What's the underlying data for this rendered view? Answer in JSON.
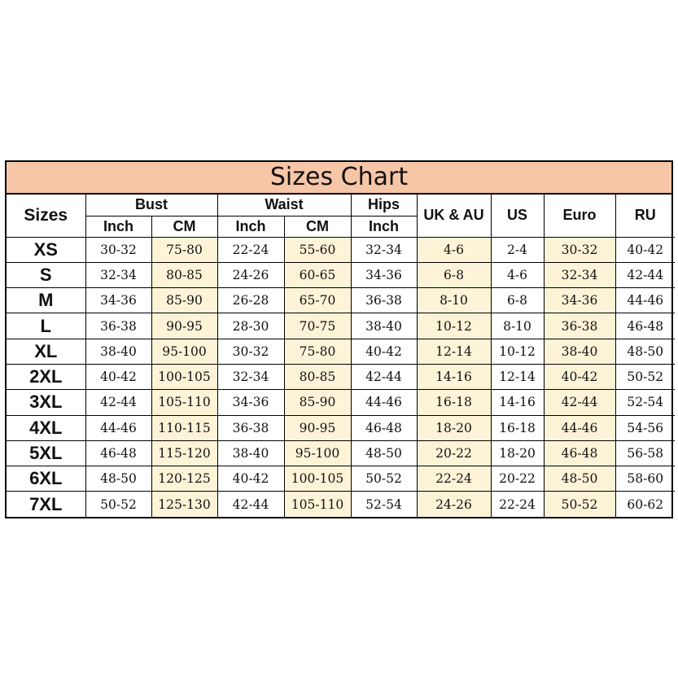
{
  "chart": {
    "title": "Sizes Chart",
    "headers": {
      "sizes": "Sizes",
      "bust": "Bust",
      "waist": "Waist",
      "hips": "Hips",
      "uk_au": "UK & AU",
      "us": "US",
      "euro": "Euro",
      "ru": "RU",
      "inch": "Inch",
      "cm": "CM"
    },
    "highlight_color": "#fdf4d8",
    "title_color": "#f7c6a7",
    "rows": [
      [
        "XS",
        "30-32",
        "75-80",
        "22-24",
        "55-60",
        "32-34",
        "4-6",
        "2-4",
        "30-32",
        "40-42"
      ],
      [
        "S",
        "32-34",
        "80-85",
        "24-26",
        "60-65",
        "34-36",
        "6-8",
        "4-6",
        "32-34",
        "42-44"
      ],
      [
        "M",
        "34-36",
        "85-90",
        "26-28",
        "65-70",
        "36-38",
        "8-10",
        "6-8",
        "34-36",
        "44-46"
      ],
      [
        "L",
        "36-38",
        "90-95",
        "28-30",
        "70-75",
        "38-40",
        "10-12",
        "8-10",
        "36-38",
        "46-48"
      ],
      [
        "XL",
        "38-40",
        "95-100",
        "30-32",
        "75-80",
        "40-42",
        "12-14",
        "10-12",
        "38-40",
        "48-50"
      ],
      [
        "2XL",
        "40-42",
        "100-105",
        "32-34",
        "80-85",
        "42-44",
        "14-16",
        "12-14",
        "40-42",
        "50-52"
      ],
      [
        "3XL",
        "42-44",
        "105-110",
        "34-36",
        "85-90",
        "44-46",
        "16-18",
        "14-16",
        "42-44",
        "52-54"
      ],
      [
        "4XL",
        "44-46",
        "110-115",
        "36-38",
        "90-95",
        "46-48",
        "18-20",
        "16-18",
        "44-46",
        "54-56"
      ],
      [
        "5XL",
        "46-48",
        "115-120",
        "38-40",
        "95-100",
        "48-50",
        "20-22",
        "18-20",
        "46-48",
        "56-58"
      ],
      [
        "6XL",
        "48-50",
        "120-125",
        "40-42",
        "100-105",
        "50-52",
        "22-24",
        "20-22",
        "48-50",
        "58-60"
      ],
      [
        "7XL",
        "50-52",
        "125-130",
        "42-44",
        "105-110",
        "52-54",
        "24-26",
        "22-24",
        "50-52",
        "60-62"
      ]
    ]
  }
}
